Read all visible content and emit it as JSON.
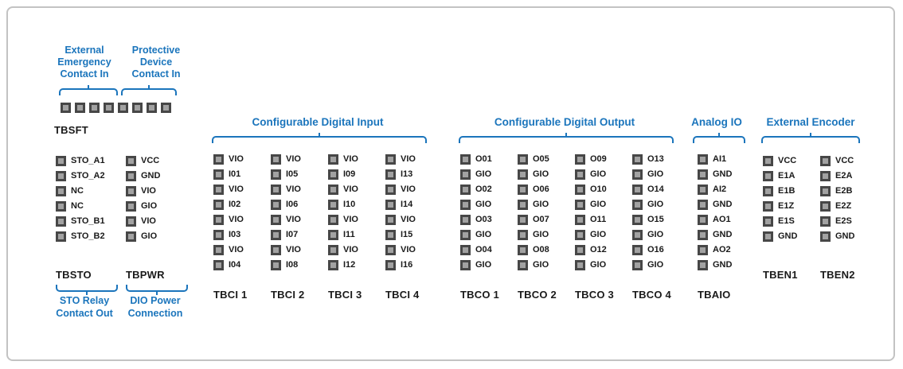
{
  "colors": {
    "accent_blue": "#1b75bc",
    "pin_border": "#474747",
    "pin_fill": "#a2a2a2",
    "card_border": "#c3c3c3",
    "text": "#1a1a1a"
  },
  "callouts": {
    "emergency": "External\nEmergency\nContact In",
    "protective": "Protective\nDevice\nContact In",
    "sto_relay": "STO Relay\nContact Out",
    "dio_power": "DIO Power\nConnection"
  },
  "headings": {
    "digital_input": "Configurable Digital Input",
    "digital_output": "Configurable Digital Output",
    "analog_io": "Analog IO",
    "external_encoder": "External Encoder"
  },
  "tbsft": {
    "name": "TBSFT",
    "pin_count": 8
  },
  "blocks": {
    "tbsto": {
      "name": "TBSTO",
      "pins": [
        "STO_A1",
        "STO_A2",
        "NC",
        "NC",
        "STO_B1",
        "STO_B2"
      ]
    },
    "tbpwr": {
      "name": "TBPWR",
      "pins": [
        "VCC",
        "GND",
        "VIO",
        "GIO",
        "VIO",
        "GIO"
      ]
    },
    "tbci1": {
      "name": "TBCI 1",
      "pins": [
        "VIO",
        "I01",
        "VIO",
        "I02",
        "VIO",
        "I03",
        "VIO",
        "I04"
      ]
    },
    "tbci2": {
      "name": "TBCI 2",
      "pins": [
        "VIO",
        "I05",
        "VIO",
        "I06",
        "VIO",
        "I07",
        "VIO",
        "I08"
      ]
    },
    "tbci3": {
      "name": "TBCI 3",
      "pins": [
        "VIO",
        "I09",
        "VIO",
        "I10",
        "VIO",
        "I11",
        "VIO",
        "I12"
      ]
    },
    "tbci4": {
      "name": "TBCI 4",
      "pins": [
        "VIO",
        "I13",
        "VIO",
        "I14",
        "VIO",
        "I15",
        "VIO",
        "I16"
      ]
    },
    "tbco1": {
      "name": "TBCO 1",
      "pins": [
        "O01",
        "GIO",
        "O02",
        "GIO",
        "O03",
        "GIO",
        "O04",
        "GIO"
      ]
    },
    "tbco2": {
      "name": "TBCO 2",
      "pins": [
        "O05",
        "GIO",
        "O06",
        "GIO",
        "O07",
        "GIO",
        "O08",
        "GIO"
      ]
    },
    "tbco3": {
      "name": "TBCO 3",
      "pins": [
        "O09",
        "GIO",
        "O10",
        "GIO",
        "O11",
        "GIO",
        "O12",
        "GIO"
      ]
    },
    "tbco4": {
      "name": "TBCO 4",
      "pins": [
        "O13",
        "GIO",
        "O14",
        "GIO",
        "O15",
        "GIO",
        "O16",
        "GIO"
      ]
    },
    "tbaio": {
      "name": "TBAIO",
      "pins": [
        "AI1",
        "GND",
        "AI2",
        "GND",
        "AO1",
        "GND",
        "AO2",
        "GND"
      ]
    },
    "tben1": {
      "name": "TBEN1",
      "pins": [
        "VCC",
        "E1A",
        "E1B",
        "E1Z",
        "E1S",
        "GND"
      ]
    },
    "tben2": {
      "name": "TBEN2",
      "pins": [
        "VCC",
        "E2A",
        "E2B",
        "E2Z",
        "E2S",
        "GND"
      ]
    }
  }
}
